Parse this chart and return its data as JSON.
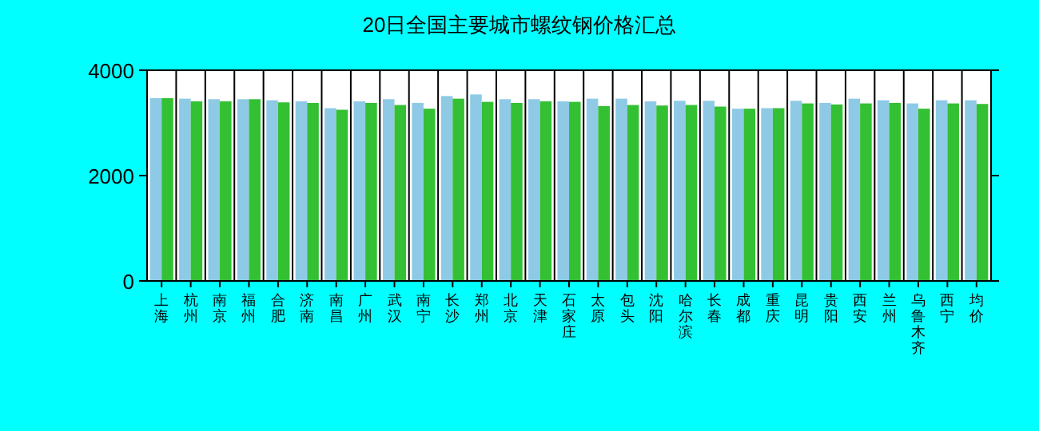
{
  "chart_data": {
    "type": "bar",
    "title": "20日全国主要城市螺纹钢价格汇总",
    "categories": [
      "上海",
      "杭州",
      "南京",
      "福州",
      "合肥",
      "济南",
      "南昌",
      "广州",
      "武汉",
      "南宁",
      "长沙",
      "郑州",
      "北京",
      "天津",
      "石家庄",
      "太原",
      "包头",
      "沈阳",
      "哈尔滨",
      "长春",
      "成都",
      "重庆",
      "昆明",
      "贵阳",
      "西安",
      "兰州",
      "乌鲁木齐",
      "西宁",
      "均价"
    ],
    "series": [
      {
        "color": "#8ecae6",
        "values": [
          3470,
          3460,
          3450,
          3450,
          3430,
          3410,
          3280,
          3410,
          3450,
          3380,
          3510,
          3540,
          3450,
          3450,
          3410,
          3460,
          3460,
          3410,
          3420,
          3420,
          3270,
          3280,
          3420,
          3380,
          3460,
          3430,
          3370,
          3430,
          3430
        ]
      },
      {
        "color": "#33c033",
        "values": [
          3470,
          3410,
          3410,
          3450,
          3390,
          3380,
          3250,
          3380,
          3340,
          3270,
          3460,
          3400,
          3380,
          3410,
          3400,
          3320,
          3340,
          3330,
          3340,
          3310,
          3270,
          3280,
          3370,
          3350,
          3370,
          3380,
          3270,
          3370,
          3360
        ]
      }
    ],
    "ylim": [
      0,
      4000
    ],
    "yticks": [
      0,
      2000,
      4000
    ],
    "grid": "x"
  }
}
